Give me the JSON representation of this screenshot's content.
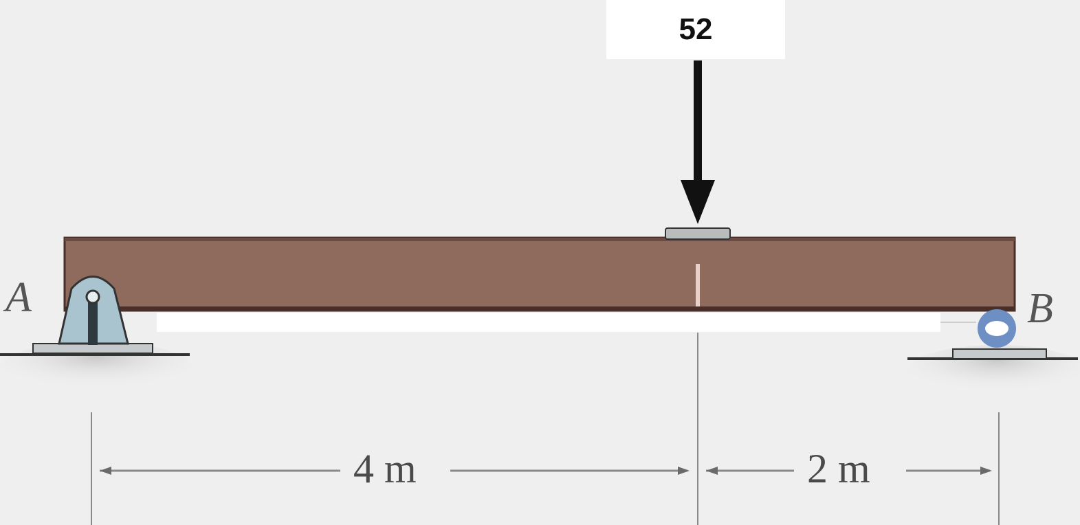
{
  "load": {
    "value": "52"
  },
  "supports": {
    "left_label": "A",
    "right_label": "B"
  },
  "dimensions": {
    "left_span": "4 m",
    "right_span": "2 m"
  },
  "colors": {
    "beam": "#8f6b5e",
    "beam_edge": "#4a2e28",
    "pin_support": "#a9c3cf",
    "roller": "#6e8fc4",
    "arrow": "#111111",
    "dimension_line": "#8a8a8a"
  },
  "icons": {
    "pin": "pin-support-icon",
    "roller": "roller-support-icon",
    "load": "down-arrow-icon"
  }
}
